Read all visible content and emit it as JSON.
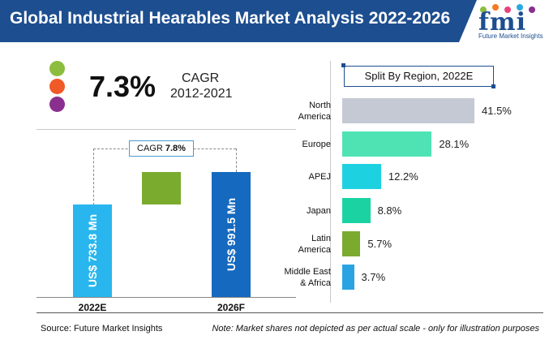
{
  "header": {
    "title": "Global Industrial Hearables Market Analysis 2022-2026"
  },
  "logo": {
    "text": "fmi",
    "subtitle": "Future Market Insights",
    "dot_colors": [
      "#8cbd3f",
      "#f47c20",
      "#e8427b",
      "#2aa9e0",
      "#8a2f8f"
    ]
  },
  "cagr": {
    "value": "7.3%",
    "label": "CAGR",
    "years": "2012-2021",
    "dot_colors": [
      "#8cbd3f",
      "#f05a28",
      "#8a2f8f"
    ]
  },
  "waterfall": {
    "cagr_box_label": "CAGR",
    "cagr_box_value": "7.8%",
    "bars": [
      {
        "year": "2022E",
        "text": "US$ 733.8 Mn",
        "value": 733.8,
        "color": "#29b6ee"
      },
      {
        "year": "",
        "text": "",
        "value": 257.7,
        "color": "#7aab2f"
      },
      {
        "year": "2026F",
        "text": "US$ 991.5 Mn",
        "value": 991.5,
        "color": "#1569bf"
      }
    ]
  },
  "chart_data": {
    "type": "bar",
    "title": "Split By Region, 2022E",
    "orientation": "horizontal",
    "categories": [
      "North America",
      "Europe",
      "APEJ",
      "Japan",
      "Latin America",
      "Middle East & Africa"
    ],
    "category_lines": [
      [
        "North",
        "America"
      ],
      [
        "Europe"
      ],
      [
        "APEJ"
      ],
      [
        "Japan"
      ],
      [
        "Latin",
        "America"
      ],
      [
        "Middle East",
        "& Africa"
      ]
    ],
    "values": [
      41.5,
      28.1,
      12.2,
      8.8,
      5.7,
      3.7
    ],
    "value_labels": [
      "41.5%",
      "28.1%",
      "12.2%",
      "8.8%",
      "5.7%",
      "3.7%"
    ],
    "colors": [
      "#c5c9d4",
      "#4fe3b4",
      "#1ed1e1",
      "#1bd3a2",
      "#7aab2f",
      "#2aa3e3"
    ],
    "unit": "%"
  },
  "footer": {
    "source": "Source: Future Market Insights",
    "note": "Note: Market shares not depicted as per actual scale - only for illustration purposes"
  }
}
